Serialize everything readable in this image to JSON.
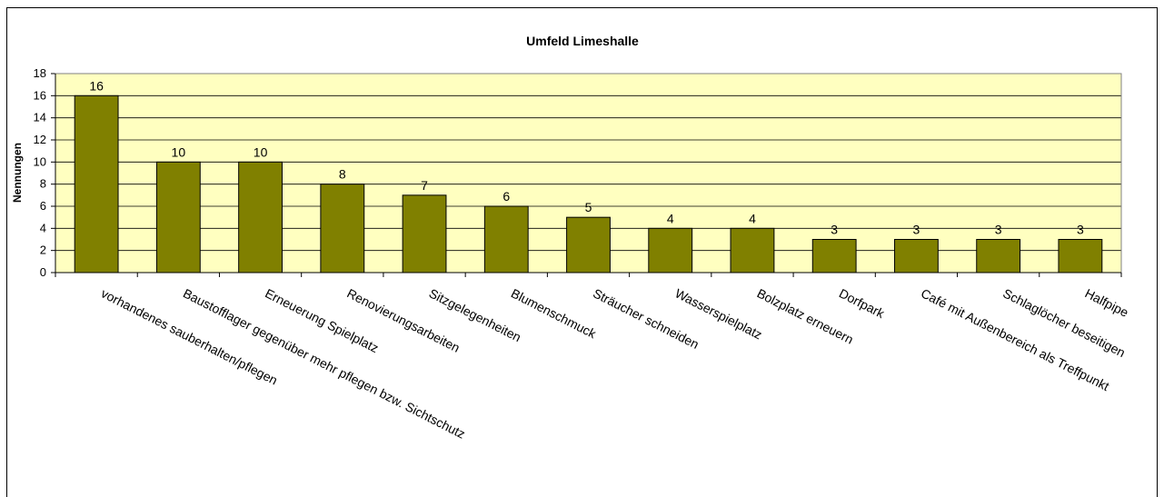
{
  "chart_data": {
    "type": "bar",
    "title": "Umfeld Limeshalle",
    "y_label": "Nennungen",
    "categories": [
      "vorhandenes sauberhalten/pflegen",
      "Baustofflager gegenüber mehr pflegen bzw. Sichtschutz",
      "Erneuerung Spielplatz",
      "Renovierungsarbeiten",
      "Sitzgelegenheiten",
      "Blumenschmuck",
      "Sträucher schneiden",
      "Wasserspielplatz",
      "Bolzplatz erneuern",
      "Dorfpark",
      "Café mit Außenbereich als Treffpunkt",
      "Schlaglöcher beseitigen",
      "Halfpipe"
    ],
    "values": [
      16,
      10,
      10,
      8,
      7,
      6,
      5,
      4,
      4,
      3,
      3,
      3,
      3
    ],
    "color": "#808000",
    "ylim": [
      0,
      18
    ],
    "yticks": [
      0,
      2,
      4,
      6,
      8,
      10,
      12,
      14,
      16,
      18
    ],
    "grid": true
  }
}
